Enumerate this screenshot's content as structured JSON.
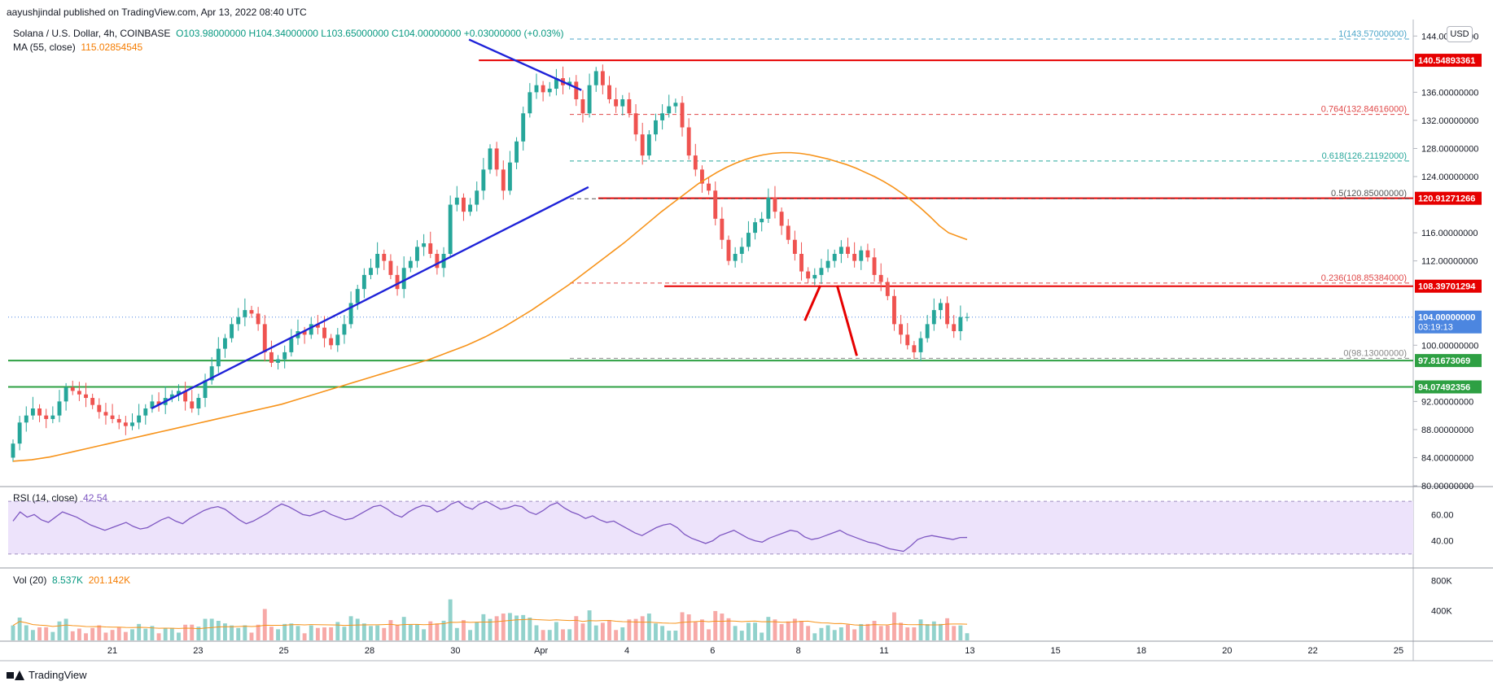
{
  "publisher": "aayushjindal published on TradingView.com, Apr 13, 2022 08:40 UTC",
  "symbol": {
    "name": "Solana / U.S. Dollar, 4h, COINBASE",
    "ohlc": "O103.98000000  H104.34000000  L103.65000000  C104.00000000  +0.03000000 (+0.03%)",
    "ma_label": "MA (55, close)",
    "ma_value": "115.02854545",
    "currency": "USD"
  },
  "rsi": {
    "label": "RSI (14, close)",
    "value": "42.54"
  },
  "volume": {
    "label": "Vol (20)",
    "value1": "8.537K",
    "value2": "201.142K"
  },
  "footer": {
    "brand": "TradingView",
    "icon": "tradingview-logo-icon"
  },
  "colors": {
    "up": "#26a69a",
    "down": "#ef5350",
    "ma": "#f7931a",
    "trend": "#1e22d8",
    "resistance": "#e60000",
    "support": "#2ea043",
    "rsi": "#7e57c2",
    "rsi_band": "#ede3fb"
  },
  "chart_data": {
    "type": "candlestick",
    "interval": "4h",
    "x_ticks": [
      "21",
      "23",
      "25",
      "28",
      "30",
      "Apr",
      "4",
      "6",
      "8",
      "11",
      "13",
      "15",
      "18",
      "20",
      "22",
      "25"
    ],
    "price_ticks": [
      "144.00000000",
      "140.00000000",
      "136.00000000",
      "132.00000000",
      "128.00000000",
      "124.00000000",
      "120.00000000",
      "116.00000000",
      "112.00000000",
      "108.00000000",
      "104.00000000",
      "100.00000000",
      "96.00000000",
      "92.00000000",
      "88.00000000",
      "84.00000000",
      "80.00000000"
    ],
    "price_range": [
      80,
      146
    ],
    "price_axis_labels": [
      {
        "text": "140.54893361",
        "price": 140.55,
        "color": "#e60000"
      },
      {
        "text": "120.91271266",
        "price": 120.91,
        "color": "#e60000"
      },
      {
        "text": "108.39701294",
        "price": 108.4,
        "color": "#e60000"
      },
      {
        "text": "104.00000000",
        "sub": "03:19:13",
        "price": 104.0,
        "color": "#4c86e0"
      },
      {
        "text": "97.81673069",
        "price": 97.82,
        "color": "#2ea043"
      },
      {
        "text": "94.07492356",
        "price": 94.07,
        "color": "#2ea043"
      }
    ],
    "fib_levels": [
      {
        "text": "1(143.57000000)",
        "price": 143.57,
        "color": "#4da6c9"
      },
      {
        "text": "0.764(132.84616000)",
        "price": 132.85,
        "color": "#e04848"
      },
      {
        "text": "0.618(126.21192000)",
        "price": 126.21,
        "color": "#26a69a"
      },
      {
        "text": "0.5(120.85000000)",
        "price": 120.85,
        "color": "#555555"
      },
      {
        "text": "0.236(108.85384000)",
        "price": 108.85,
        "color": "#e04848"
      },
      {
        "text": "0(98.13000000)",
        "price": 98.13,
        "color": "#888888"
      }
    ],
    "horizontal_lines": [
      {
        "price": 140.55,
        "color": "#e60000",
        "from": 0.335
      },
      {
        "price": 120.91,
        "color": "#e60000",
        "from": 0.42
      },
      {
        "price": 108.4,
        "color": "#e60000",
        "from": 0.467
      },
      {
        "price": 97.82,
        "color": "#2ea043",
        "from": 0.0
      },
      {
        "price": 94.07,
        "color": "#2ea043",
        "from": 0.0
      }
    ],
    "close_series": [
      86,
      89,
      90,
      91,
      90,
      89.5,
      90,
      92,
      94,
      93.5,
      93,
      92.5,
      91.5,
      90.5,
      90,
      89.5,
      89,
      88.5,
      89,
      90,
      91,
      92,
      91.5,
      92.5,
      93,
      93.5,
      92,
      91,
      92.5,
      95,
      97,
      99.5,
      101,
      103,
      104,
      105,
      104.5,
      103,
      99,
      97.5,
      98,
      99,
      101,
      102,
      101.5,
      103,
      102.5,
      101,
      100,
      101.5,
      103,
      106,
      108,
      110,
      111,
      113,
      112,
      110,
      108,
      111,
      112,
      114,
      114.5,
      113,
      111,
      113,
      120,
      121,
      119,
      120,
      122,
      125,
      128,
      125,
      122,
      126,
      129,
      133,
      136,
      137,
      136,
      136.5,
      138,
      137,
      137.5,
      135,
      133,
      137,
      139,
      137,
      135,
      134,
      135,
      133,
      130,
      127,
      130,
      132,
      133,
      134,
      134.5,
      131,
      127,
      125,
      123,
      122,
      118,
      115,
      112,
      113,
      114,
      116,
      117.5,
      118,
      121,
      119,
      117,
      115,
      113,
      110.5,
      109.5,
      110,
      111,
      112,
      113,
      114,
      113,
      112,
      113.5,
      112.5,
      110,
      109,
      107,
      103,
      101.5,
      100,
      99,
      101,
      103,
      105,
      106,
      103,
      102,
      104,
      104
    ],
    "ma_series": [
      83.5,
      83.6,
      83.7,
      83.9,
      84.1,
      84.4,
      84.7,
      85,
      85.3,
      85.6,
      85.9,
      86.2,
      86.5,
      86.8,
      87.1,
      87.4,
      87.7,
      88,
      88.3,
      88.6,
      88.9,
      89.2,
      89.5,
      89.8,
      90.1,
      90.4,
      90.7,
      91,
      91.3,
      91.6,
      92,
      92.4,
      92.8,
      93.2,
      93.6,
      94,
      94.4,
      94.8,
      95.2,
      95.6,
      96,
      96.4,
      96.8,
      97.2,
      97.6,
      98,
      98.5,
      99,
      99.5,
      100,
      100.6,
      101.2,
      101.9,
      102.6,
      103.4,
      104.2,
      105,
      105.9,
      106.8,
      107.7,
      108.6,
      109.6,
      110.6,
      111.6,
      112.6,
      113.6,
      114.6,
      115.7,
      116.8,
      117.9,
      119,
      120,
      121,
      122,
      123,
      123.8,
      124.6,
      125.3,
      125.9,
      126.4,
      126.8,
      127.1,
      127.3,
      127.4,
      127.4,
      127.3,
      127.1,
      126.8,
      126.5,
      126.1,
      125.7,
      125.2,
      124.6,
      124,
      123.3,
      122.5,
      121.6,
      120.6,
      119.5,
      118.3,
      117,
      116,
      115.5,
      115.03
    ],
    "trendlines": [
      {
        "label": "support-trendline",
        "from": [
          0.102,
          91.0
        ],
        "to": [
          0.413,
          122.5
        ],
        "color": "#1e22d8"
      },
      {
        "label": "resistance-trendline",
        "from": [
          0.328,
          143.5
        ],
        "to": [
          0.408,
          136.3
        ],
        "color": "#1e22d8"
      }
    ],
    "projection": [
      {
        "from": [
          0.567,
          103.5
        ],
        "to": [
          0.578,
          108.5
        ]
      },
      {
        "from": [
          0.59,
          108.5
        ],
        "to": [
          0.604,
          98.5
        ]
      }
    ],
    "rsi": {
      "ticks": [
        "60.00",
        "40.00"
      ],
      "range": [
        20,
        80
      ],
      "band": [
        30,
        70
      ],
      "series": [
        55,
        62,
        58,
        60,
        56,
        54,
        58,
        62,
        60,
        58,
        55,
        52,
        50,
        48,
        50,
        52,
        54,
        51,
        49,
        50,
        53,
        56,
        58,
        55,
        53,
        57,
        60,
        63,
        65,
        66,
        64,
        60,
        56,
        53,
        55,
        58,
        61,
        65,
        68,
        66,
        63,
        60,
        59,
        61,
        63,
        60,
        58,
        56,
        57,
        60,
        63,
        66,
        67,
        64,
        60,
        58,
        62,
        65,
        67,
        66,
        62,
        64,
        68,
        70,
        66,
        64,
        68,
        70,
        67,
        64,
        65,
        67,
        66,
        62,
        60,
        63,
        67,
        69,
        65,
        62,
        60,
        57,
        59,
        56,
        54,
        55,
        52,
        49,
        46,
        44,
        47,
        50,
        52,
        53,
        50,
        45,
        42,
        40,
        38,
        40,
        44,
        46,
        48,
        45,
        42,
        40,
        39,
        42,
        44,
        46,
        48,
        47,
        43,
        41,
        42,
        44,
        46,
        48,
        45,
        43,
        41,
        39,
        38,
        36,
        34,
        33,
        32,
        36,
        41,
        43,
        44,
        43,
        42,
        41,
        42.5,
        42.54
      ]
    },
    "volume": {
      "ticks": [
        "800K",
        "400K"
      ],
      "max": 950000
    }
  }
}
